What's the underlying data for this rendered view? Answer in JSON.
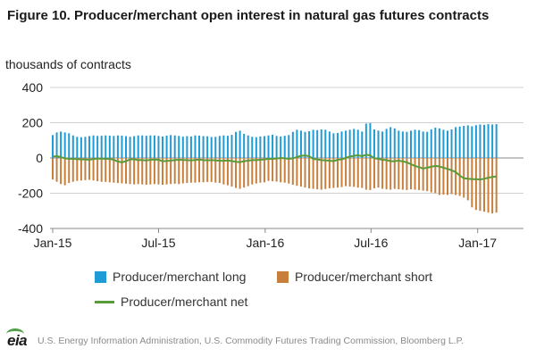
{
  "title": "Figure 10. Producer/merchant open interest in natural gas futures contracts",
  "source": "U.S. Energy Information Administration, U.S. Commodity Futures Trading Commission, Bloomberg L.P.",
  "logo_text": "eia",
  "colors": {
    "long": "#1f9bd6",
    "short": "#c87f3c",
    "net": "#5b9a38",
    "grid": "#d0d0d0",
    "axis": "#888888"
  },
  "chart_data": {
    "type": "bar",
    "ylabel": "thousands of contracts",
    "ylim": [
      -400,
      400
    ],
    "yticks": [
      400,
      200,
      0,
      -200,
      -400
    ],
    "xlim": [
      0,
      115
    ],
    "xticks": [
      {
        "label": "Jan-15",
        "x": 0
      },
      {
        "label": "Jul-15",
        "x": 26
      },
      {
        "label": "Jan-16",
        "x": 52.2
      },
      {
        "label": "Jul-16",
        "x": 78.2
      },
      {
        "label": "Jan-17",
        "x": 104.4
      }
    ],
    "grid": true,
    "legend_position": "bottom",
    "series": [
      {
        "name": "Producer/merchant long",
        "type": "bar",
        "values": [
          130,
          145,
          150,
          145,
          140,
          128,
          120,
          118,
          120,
          124,
          128,
          125,
          126,
          128,
          127,
          125,
          128,
          127,
          124,
          120,
          124,
          128,
          128,
          126,
          128,
          128,
          125,
          122,
          127,
          130,
          128,
          125,
          121,
          124,
          122,
          128,
          127,
          124,
          123,
          119,
          120,
          125,
          128,
          126,
          131,
          148,
          155,
          137,
          128,
          120,
          118,
          122,
          124,
          128,
          132,
          125,
          122,
          126,
          130,
          148,
          160,
          155,
          148,
          152,
          160,
          158,
          162,
          160,
          150,
          140,
          142,
          150,
          155,
          160,
          165,
          160,
          150,
          195,
          198,
          162,
          155,
          150,
          165,
          175,
          168,
          155,
          150,
          148,
          155,
          160,
          158,
          150,
          148,
          162,
          172,
          168,
          160,
          155,
          162,
          175,
          178,
          182,
          185,
          180,
          186,
          190,
          188,
          192,
          190,
          192
        ]
      },
      {
        "name": "Producer/merchant short",
        "type": "bar",
        "values": [
          -122,
          -135,
          -148,
          -155,
          -142,
          -135,
          -130,
          -128,
          -126,
          -124,
          -128,
          -132,
          -135,
          -136,
          -138,
          -140,
          -142,
          -144,
          -146,
          -148,
          -150,
          -148,
          -150,
          -152,
          -150,
          -148,
          -150,
          -152,
          -150,
          -148,
          -146,
          -148,
          -144,
          -142,
          -140,
          -140,
          -138,
          -138,
          -136,
          -136,
          -140,
          -142,
          -150,
          -155,
          -162,
          -170,
          -175,
          -168,
          -160,
          -150,
          -145,
          -140,
          -138,
          -130,
          -132,
          -134,
          -138,
          -140,
          -145,
          -152,
          -158,
          -162,
          -168,
          -172,
          -175,
          -178,
          -180,
          -176,
          -172,
          -170,
          -168,
          -165,
          -160,
          -162,
          -164,
          -168,
          -170,
          -180,
          -182,
          -172,
          -168,
          -175,
          -178,
          -180,
          -175,
          -178,
          -180,
          -182,
          -178,
          -180,
          -182,
          -185,
          -188,
          -195,
          -200,
          -210,
          -208,
          -210,
          -205,
          -210,
          -215,
          -225,
          -240,
          -280,
          -295,
          -300,
          -305,
          -310,
          -315,
          -310
        ]
      },
      {
        "name": "Producer/merchant net",
        "type": "line",
        "values": [
          8,
          10,
          5,
          -2,
          -5,
          -5,
          -6,
          -8,
          -8,
          -10,
          -6,
          -3,
          -4,
          -5,
          -5,
          -10,
          -20,
          -25,
          -18,
          -8,
          -7,
          -12,
          -12,
          -14,
          -10,
          -9,
          -10,
          -18,
          -17,
          -15,
          -12,
          -10,
          -11,
          -12,
          -14,
          -11,
          -9,
          -12,
          -13,
          -12,
          -14,
          -15,
          -16,
          -14,
          -17,
          -22,
          -24,
          -18,
          -15,
          -12,
          -12,
          -10,
          -8,
          -5,
          -5,
          -3,
          0,
          -2,
          -5,
          -2,
          5,
          12,
          14,
          10,
          -5,
          -8,
          -12,
          -14,
          -15,
          -18,
          -10,
          -8,
          0,
          8,
          12,
          15,
          10,
          18,
          15,
          -2,
          -5,
          -10,
          -12,
          -18,
          -18,
          -15,
          -20,
          -25,
          -35,
          -45,
          -52,
          -60,
          -55,
          -50,
          -45,
          -48,
          -55,
          -62,
          -70,
          -80,
          -100,
          -115,
          -118,
          -120,
          -120,
          -122,
          -118,
          -112,
          -108,
          -105
        ]
      }
    ]
  },
  "legend": {
    "long_label": "Producer/merchant long",
    "short_label": "Producer/merchant short",
    "net_label": "Producer/merchant net"
  }
}
